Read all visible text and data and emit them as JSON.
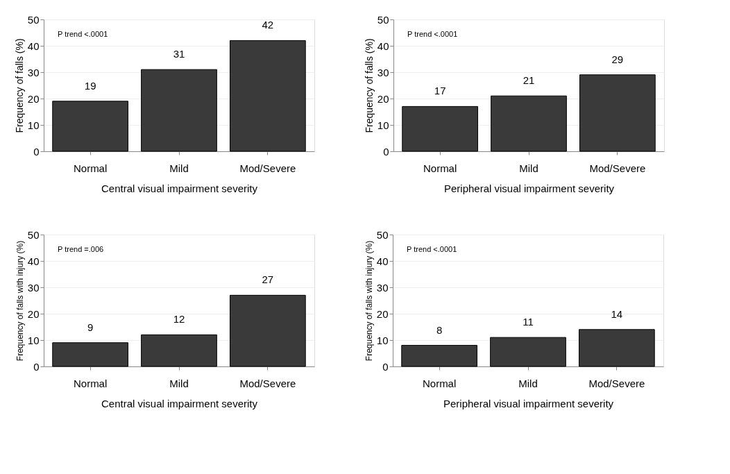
{
  "chart_data": [
    {
      "type": "bar",
      "categories": [
        "Normal",
        "Mild",
        "Mod/Severe"
      ],
      "values": [
        19,
        31,
        42
      ],
      "color": "#3a3a3a",
      "xlabel": "Central visual impairment severity",
      "ylabel": "Frequency of falls (%)",
      "ylim": [
        0,
        50
      ],
      "yticks": [
        0,
        10,
        20,
        30,
        40,
        50
      ],
      "grid": "y",
      "data_labels": true,
      "annotations": [
        "P trend  <.0001"
      ]
    },
    {
      "type": "bar",
      "categories": [
        "Normal",
        "Mild",
        "Mod/Severe"
      ],
      "values": [
        17,
        21,
        29
      ],
      "color": "#3a3a3a",
      "xlabel": "Peripheral visual impairment severity",
      "ylabel": "Frequency of falls (%)",
      "ylim": [
        0,
        50
      ],
      "yticks": [
        0,
        10,
        20,
        30,
        40,
        50
      ],
      "grid": "y",
      "data_labels": true,
      "annotations": [
        "P trend  <.0001"
      ]
    },
    {
      "type": "bar",
      "categories": [
        "Normal",
        "Mild",
        "Mod/Severe"
      ],
      "values": [
        9,
        12,
        27
      ],
      "color": "#3a3a3a",
      "xlabel": "Central visual impairment severity",
      "ylabel": "Frequency of falls with injury (%)",
      "ylim": [
        0,
        50
      ],
      "yticks": [
        0,
        10,
        20,
        30,
        40,
        50
      ],
      "grid": "y",
      "data_labels": true,
      "annotations": [
        "P trend =.006"
      ]
    },
    {
      "type": "bar",
      "categories": [
        "Normal",
        "Mild",
        "Mod/Severe"
      ],
      "values": [
        8,
        11,
        14
      ],
      "color": "#3a3a3a",
      "xlabel": "Peripheral visual impairment severity",
      "ylabel": "Frequency of falls with injury (%)",
      "ylim": [
        0,
        50
      ],
      "yticks": [
        0,
        10,
        20,
        30,
        40,
        50
      ],
      "grid": "y",
      "data_labels": true,
      "annotations": [
        "P trend  <.0001"
      ]
    }
  ]
}
